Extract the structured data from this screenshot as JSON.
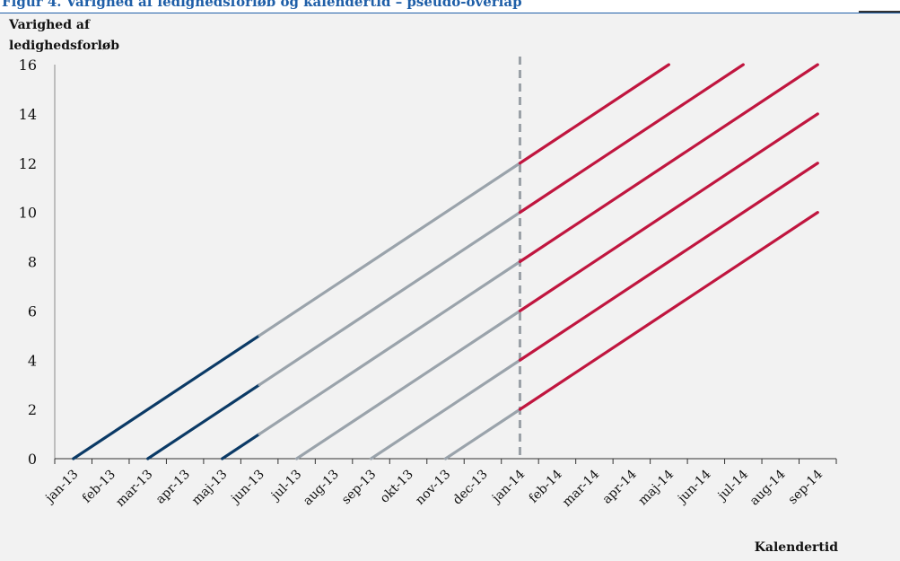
{
  "figure": {
    "heading": "Figur 4. Varighed af ledighedsforløb og kalendertid – pseudo-overlap"
  },
  "chart_data": {
    "type": "line",
    "ylabel": "Varighed af ledighedsforløb",
    "xlabel": "Kalendertid",
    "ylim": [
      0,
      16
    ],
    "yticks": [
      0,
      2,
      4,
      6,
      8,
      10,
      12,
      14,
      16
    ],
    "categories": [
      "jan-13",
      "feb-13",
      "mar-13",
      "apr-13",
      "maj-13",
      "jun-13",
      "jul-13",
      "aug-13",
      "sep-13",
      "okt-13",
      "nov-13",
      "dec-13",
      "jan-14",
      "feb-14",
      "mar-14",
      "apr-14",
      "maj-14",
      "jun-14",
      "jul-14",
      "aug-14",
      "sep-14"
    ],
    "vertical_marker": {
      "at_month_index": 12,
      "style": "dashed",
      "color": "#9aa0a6"
    },
    "grid": false,
    "colors": {
      "early": "#0b3a66",
      "middle": "#9aa3ab",
      "late": "#c0163f"
    },
    "series": [
      {
        "start": 0.5,
        "points": [
          [
            0.5,
            0
          ],
          [
            5.5,
            5
          ]
        ],
        "segments": [
          {
            "from": 0.5,
            "to": 5.5,
            "color": "early"
          },
          {
            "from": 5.5,
            "to": 12.5,
            "color": "middle"
          },
          {
            "from": 12.5,
            "to": 16.5,
            "color": "late"
          }
        ]
      },
      {
        "start": 2.5,
        "points": [
          [
            2.5,
            0
          ],
          [
            5.5,
            3
          ]
        ],
        "segments": [
          {
            "from": 2.5,
            "to": 5.5,
            "color": "early"
          },
          {
            "from": 5.5,
            "to": 12.5,
            "color": "middle"
          },
          {
            "from": 12.5,
            "to": 18.5,
            "color": "late"
          }
        ]
      },
      {
        "start": 4.5,
        "points": [
          [
            4.5,
            0
          ],
          [
            5.5,
            1
          ]
        ],
        "segments": [
          {
            "from": 4.5,
            "to": 5.5,
            "color": "early"
          },
          {
            "from": 5.5,
            "to": 12.5,
            "color": "middle"
          },
          {
            "from": 12.5,
            "to": 20.5,
            "color": "late"
          }
        ]
      },
      {
        "start": 6.5,
        "segments": [
          {
            "from": 6.5,
            "to": 12.5,
            "color": "middle"
          },
          {
            "from": 12.5,
            "to": 20.5,
            "color": "late"
          }
        ]
      },
      {
        "start": 8.5,
        "segments": [
          {
            "from": 8.5,
            "to": 12.5,
            "color": "middle"
          },
          {
            "from": 12.5,
            "to": 20.5,
            "color": "late"
          }
        ]
      },
      {
        "start": 10.5,
        "segments": [
          {
            "from": 10.5,
            "to": 12.5,
            "color": "middle"
          },
          {
            "from": 12.5,
            "to": 20.5,
            "color": "late"
          }
        ]
      }
    ]
  }
}
